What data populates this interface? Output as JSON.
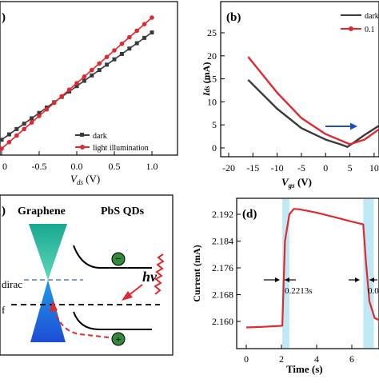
{
  "panel_a": {
    "label": ")",
    "xlabel_main": "V",
    "xlabel_sub": "ds",
    "xlabel_unit": " (V)",
    "xticks": [
      "0",
      "-0.5",
      "0.0",
      "0.5",
      "1.0"
    ],
    "legend": [
      "dark",
      "light illumination"
    ]
  },
  "panel_b": {
    "label": "(b)",
    "ylabel_main": "I",
    "ylabel_sub": "ds",
    "ylabel_unit": " (mA)",
    "xlabel_main": "V",
    "xlabel_sub": "gs",
    "xlabel_unit": " (V)",
    "yticks": [
      "0",
      "5",
      "10",
      "15",
      "20",
      "25"
    ],
    "xticks": [
      "-20",
      "-15",
      "-10",
      "-5",
      "0",
      "5",
      "10"
    ],
    "legend": [
      "dark",
      "0.1"
    ]
  },
  "panel_c": {
    "label": ")",
    "graphene": "Graphene",
    "pbs": "PbS QDs",
    "hv_main": "hv",
    "dirac": "dirac",
    "f": "f",
    "minus": "−",
    "plus": "+"
  },
  "panel_d": {
    "label": "(d)",
    "ylabel": "Current (mA)",
    "xlabel": "Time (s)",
    "yticks": [
      "2.160",
      "2.168",
      "2.176",
      "2.184",
      "2.192"
    ],
    "xticks": [
      "0",
      "2",
      "4",
      "6"
    ],
    "ann_rise": "0.2213s",
    "ann_fall": "0.0"
  },
  "colors": {
    "dark": "#3a3a3a",
    "light": "#e0282e",
    "arrow_blue": "#1f4fbf",
    "highlight": "#bfeaf5",
    "cone_top": "#2ec2a0",
    "cone_bottom": "#1e6fe0",
    "dirac_line": "#4a80c8"
  },
  "chart_data": [
    {
      "type": "line",
      "panel": "a",
      "xlabel": "Vds (V)",
      "ylabel": "",
      "xlim": [
        -1.0,
        1.0
      ],
      "series": [
        {
          "name": "dark",
          "x": [
            -1.0,
            1.0
          ],
          "y": [
            -0.85,
            0.95
          ]
        },
        {
          "name": "light illumination",
          "x": [
            -1.0,
            1.0
          ],
          "y": [
            -1.0,
            1.2
          ]
        }
      ]
    },
    {
      "type": "line",
      "panel": "b",
      "xlabel": "Vgs (V)",
      "ylabel": "Ids (mA)",
      "xlim": [
        -20,
        12
      ],
      "ylim": [
        -2,
        28
      ],
      "series": [
        {
          "name": "dark",
          "x": [
            -16,
            -10,
            -5,
            0,
            3,
            4.5,
            8,
            12
          ],
          "y": [
            14.8,
            8.5,
            4.3,
            1.8,
            0.8,
            0.2,
            2.8,
            5.5
          ]
        },
        {
          "name": "0.1",
          "x": [
            -16,
            -10,
            -5,
            0,
            5,
            8,
            12
          ],
          "y": [
            19.8,
            12.0,
            6.5,
            3.0,
            0.8,
            1.8,
            4.8
          ]
        }
      ]
    },
    {
      "type": "line",
      "panel": "d",
      "xlabel": "Time (s)",
      "ylabel": "Current (mA)",
      "xlim": [
        -0.5,
        8.5
      ],
      "ylim": [
        2.156,
        2.195
      ],
      "series": [
        {
          "name": "",
          "x": [
            0,
            1,
            2.05,
            2.2,
            2.45,
            2.7,
            3.0,
            4.0,
            5.0,
            6.0,
            6.65,
            6.8,
            7.0,
            7.3,
            7.7
          ],
          "y": [
            2.1582,
            2.1584,
            2.1587,
            2.184,
            2.192,
            2.1936,
            2.1935,
            2.1925,
            2.1912,
            2.1898,
            2.189,
            2.178,
            2.166,
            2.161,
            2.16
          ]
        }
      ]
    }
  ]
}
